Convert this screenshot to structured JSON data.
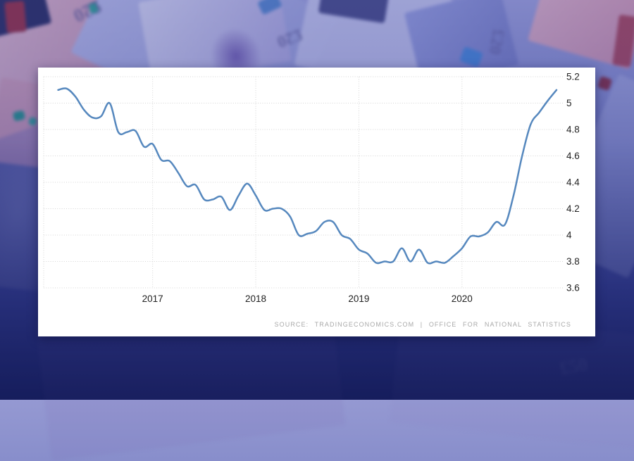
{
  "chart_data": {
    "type": "line",
    "series": [
      {
        "start_month": "2016-02",
        "frequency": "monthly",
        "values": [
          5.1,
          5.11,
          5.05,
          4.95,
          4.89,
          4.9,
          5.0,
          4.78,
          4.78,
          4.79,
          4.67,
          4.69,
          4.57,
          4.56,
          4.47,
          4.37,
          4.38,
          4.27,
          4.27,
          4.29,
          4.19,
          4.3,
          4.39,
          4.3,
          4.19,
          4.2,
          4.2,
          4.14,
          4.0,
          4.01,
          4.03,
          4.1,
          4.1,
          4.0,
          3.97,
          3.89,
          3.86,
          3.79,
          3.8,
          3.8,
          3.9,
          3.8,
          3.89,
          3.79,
          3.8,
          3.79,
          3.84,
          3.9,
          3.99,
          3.99,
          4.02,
          4.1,
          4.08,
          4.3,
          4.6,
          4.84,
          4.93,
          5.02,
          5.1
        ]
      }
    ],
    "x_ticks": [
      {
        "label": "2017",
        "month_index": 11
      },
      {
        "label": "2018",
        "month_index": 23
      },
      {
        "label": "2019",
        "month_index": 35
      },
      {
        "label": "2020",
        "month_index": 47
      }
    ],
    "y_ticks": [
      {
        "label": "5.2",
        "value": 5.2
      },
      {
        "label": "5",
        "value": 5.0
      },
      {
        "label": "4.8",
        "value": 4.8
      },
      {
        "label": "4.6",
        "value": 4.6
      },
      {
        "label": "4.4",
        "value": 4.4
      },
      {
        "label": "4.2",
        "value": 4.2
      },
      {
        "label": "4",
        "value": 4.0
      },
      {
        "label": "3.8",
        "value": 3.8
      },
      {
        "label": "3.6",
        "value": 3.6
      }
    ],
    "ylim": [
      3.6,
      5.2
    ],
    "grid": "dotted",
    "legend": "none",
    "line_color": "#5688be",
    "grid_color": "#d6d6d6",
    "tick_color": "#222222",
    "source": "SOURCE: TRADINGECONOMICS.COM | OFFICE FOR NATIONAL STATISTICS"
  },
  "background": {
    "currency_marks": [
      "£20",
      "£20",
      "£20",
      "£50"
    ]
  }
}
